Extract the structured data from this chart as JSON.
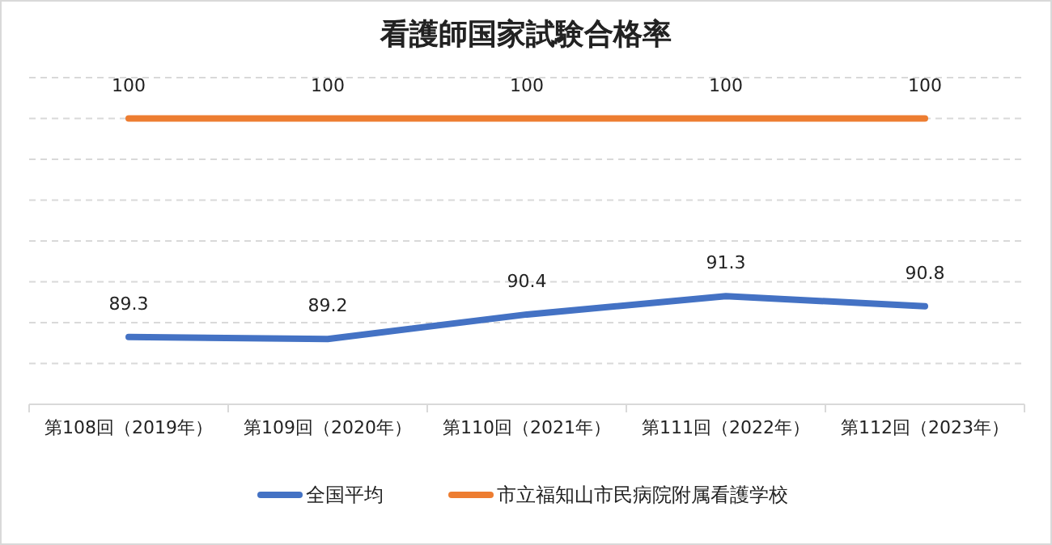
{
  "chart_data": {
    "type": "line",
    "title": "看護師国家試験合格率",
    "categories": [
      "第108回（2019年）",
      "第109回（2020年）",
      "第110回（2021年）",
      "第111回（2022年）",
      "第112回（2023年）"
    ],
    "series": [
      {
        "name": "全国平均",
        "color": "#4472c4",
        "values": [
          89.3,
          89.2,
          90.4,
          91.3,
          90.8
        ]
      },
      {
        "name": "市立福知山市民病院附属看護学校",
        "color": "#ed7d31",
        "values": [
          100,
          100,
          100,
          100,
          100
        ]
      }
    ],
    "ylim": [
      86,
      102
    ],
    "yticks": [
      {
        "value": 86,
        "label": null
      },
      {
        "value": 88,
        "label": null
      },
      {
        "value": 90,
        "label": null
      },
      {
        "value": 92,
        "label": null
      },
      {
        "value": 94,
        "label": null
      },
      {
        "value": 96,
        "label": null
      },
      {
        "value": 98,
        "label": null
      },
      {
        "value": 100,
        "label": null
      },
      {
        "value": 102,
        "label": null
      }
    ],
    "tick_labels": "x",
    "grid": "y",
    "data_labels": true,
    "legend": "bottom",
    "marker": "none",
    "line_style": "solid"
  }
}
